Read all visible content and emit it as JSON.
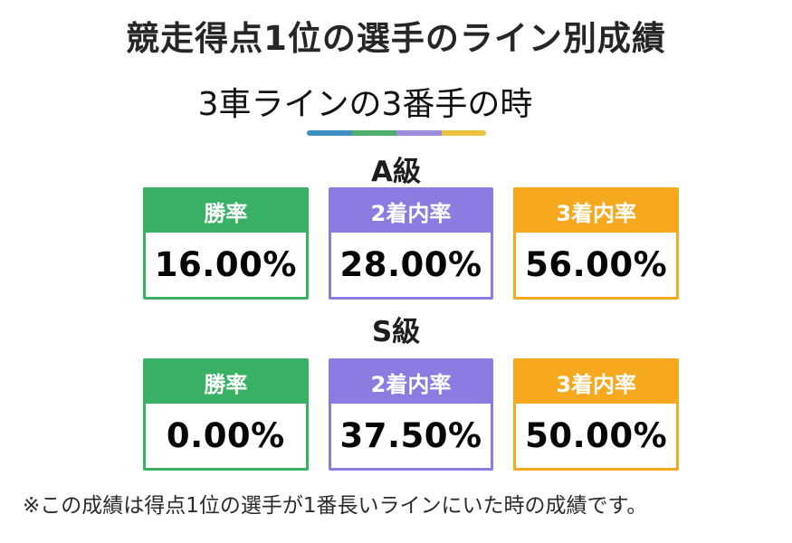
{
  "page": {
    "title": "競走得点1位の選手のライン別成績",
    "subtitle": "3車ラインの3番手の時",
    "footnote": "※この成績は得点1位の選手が1番長いラインにいた時の成績です。"
  },
  "colors": {
    "green": "#38b164",
    "purple": "#8b7ce2",
    "orange": "#f6a81f",
    "title_text": "#262626",
    "value_text": "#050505"
  },
  "divider_segments": [
    "#3d8fc5",
    "#4eae6b",
    "#9c8cda",
    "#eac23f"
  ],
  "sections": [
    {
      "heading": "A級",
      "cards": [
        {
          "label": "勝率",
          "value": "16.00%",
          "color": "#38b164"
        },
        {
          "label": "2着内率",
          "value": "28.00%",
          "color": "#8b7ce2"
        },
        {
          "label": "3着内率",
          "value": "56.00%",
          "color": "#f6a81f"
        }
      ]
    },
    {
      "heading": "S級",
      "cards": [
        {
          "label": "勝率",
          "value": "0.00%",
          "color": "#38b164"
        },
        {
          "label": "2着内率",
          "value": "37.50%",
          "color": "#8b7ce2"
        },
        {
          "label": "3着内率",
          "value": "50.00%",
          "color": "#f6a81f"
        }
      ]
    }
  ],
  "chart_data": {
    "type": "table",
    "title": "競走得点1位の選手のライン別成績",
    "subtitle": "3車ラインの3番手の時",
    "columns": [
      "勝率",
      "2着内率",
      "3着内率"
    ],
    "rows": [
      {
        "class": "A級",
        "values": [
          16.0,
          28.0,
          56.0
        ]
      },
      {
        "class": "S級",
        "values": [
          0.0,
          37.5,
          50.0
        ]
      }
    ],
    "unit": "%",
    "legend_colors": {
      "勝率": "#38b164",
      "2着内率": "#8b7ce2",
      "3着内率": "#f6a81f"
    },
    "note": "※この成績は得点1位の選手が1番長いラインにいた時の成績です。"
  }
}
